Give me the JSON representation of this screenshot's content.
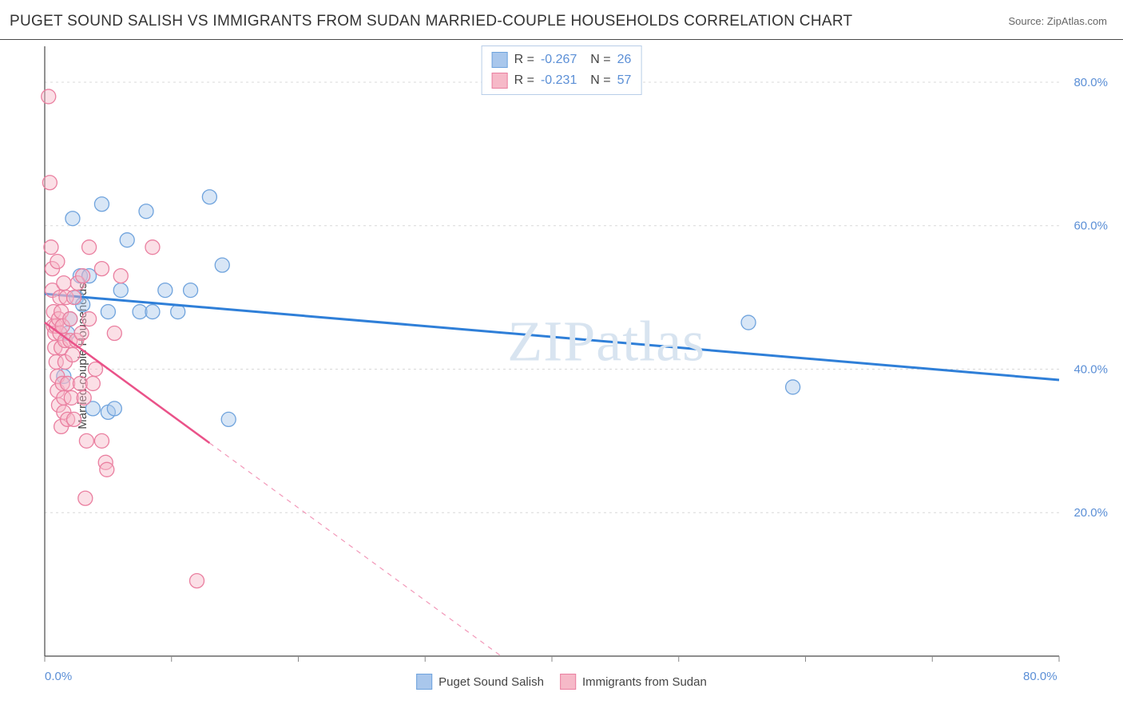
{
  "header": {
    "title": "PUGET SOUND SALISH VS IMMIGRANTS FROM SUDAN MARRIED-COUPLE HOUSEHOLDS CORRELATION CHART",
    "source_label": "Source: ZipAtlas.com"
  },
  "watermark": "ZIPatlas",
  "chart": {
    "type": "scatter",
    "background_color": "#ffffff",
    "grid_color": "#d8d8d8",
    "axis_color": "#4a4a4a",
    "tick_color": "#888",
    "tick_label_color": "#5b8fd6",
    "ylabel": "Married-couple Households",
    "ylabel_fontsize": 15,
    "xlim": [
      0,
      80
    ],
    "ylim": [
      0,
      85
    ],
    "xtick_positions": [
      0,
      10,
      20,
      30,
      40,
      50,
      60,
      70,
      80
    ],
    "xtick_labels_shown": {
      "0": "0.0%",
      "80": "80.0%"
    },
    "ytick_positions": [
      20,
      40,
      60,
      80
    ],
    "ytick_labels": [
      "20.0%",
      "40.0%",
      "60.0%",
      "80.0%"
    ],
    "series": [
      {
        "name": "Puget Sound Salish",
        "color_fill": "#a9c7ec",
        "color_stroke": "#6fa3dd",
        "marker_radius": 9,
        "fill_opacity": 0.45,
        "line_color": "#2f7fd8",
        "line_width": 3,
        "regression": {
          "x1": 0,
          "y1": 50.5,
          "x2": 80,
          "y2": 38.5,
          "solid_until_x": 80
        },
        "R": "-0.267",
        "N": "26",
        "points": [
          [
            1.5,
            39
          ],
          [
            1.8,
            45
          ],
          [
            2.0,
            47
          ],
          [
            2.2,
            61
          ],
          [
            2.5,
            50
          ],
          [
            2.8,
            53
          ],
          [
            3.5,
            53
          ],
          [
            4.5,
            63
          ],
          [
            5.0,
            48
          ],
          [
            5.0,
            34
          ],
          [
            6.0,
            51
          ],
          [
            6.5,
            58
          ],
          [
            7.5,
            48
          ],
          [
            8.0,
            62
          ],
          [
            8.5,
            48
          ],
          [
            9.5,
            51
          ],
          [
            10.5,
            48
          ],
          [
            11.5,
            51
          ],
          [
            13.0,
            64
          ],
          [
            14.0,
            54.5
          ],
          [
            14.5,
            33
          ],
          [
            3.8,
            34.5
          ],
          [
            5.5,
            34.5
          ],
          [
            55.5,
            46.5
          ],
          [
            59.0,
            37.5
          ],
          [
            3.0,
            49
          ]
        ]
      },
      {
        "name": "Immigrants from Sudan",
        "color_fill": "#f6b9c8",
        "color_stroke": "#ea7fa0",
        "marker_radius": 9,
        "fill_opacity": 0.45,
        "line_color": "#ea5289",
        "line_width": 2.5,
        "regression": {
          "x1": 0,
          "y1": 46.5,
          "x2": 36,
          "y2": 0,
          "solid_until_x": 13
        },
        "R": "-0.231",
        "N": "57",
        "points": [
          [
            0.3,
            78
          ],
          [
            0.4,
            66
          ],
          [
            0.5,
            57
          ],
          [
            0.6,
            54
          ],
          [
            0.6,
            51
          ],
          [
            0.7,
            48
          ],
          [
            0.7,
            46
          ],
          [
            0.8,
            45
          ],
          [
            0.8,
            43
          ],
          [
            0.9,
            41
          ],
          [
            0.9,
            46
          ],
          [
            1.0,
            55
          ],
          [
            1.0,
            39
          ],
          [
            1.0,
            37
          ],
          [
            1.1,
            47
          ],
          [
            1.1,
            35
          ],
          [
            1.2,
            50
          ],
          [
            1.2,
            45
          ],
          [
            1.3,
            48
          ],
          [
            1.3,
            43
          ],
          [
            1.3,
            32
          ],
          [
            1.4,
            46
          ],
          [
            1.4,
            38
          ],
          [
            1.5,
            52
          ],
          [
            1.5,
            36
          ],
          [
            1.5,
            34
          ],
          [
            1.6,
            44
          ],
          [
            1.6,
            41
          ],
          [
            1.7,
            50
          ],
          [
            1.8,
            38
          ],
          [
            1.8,
            33
          ],
          [
            2.0,
            44
          ],
          [
            2.0,
            47
          ],
          [
            2.1,
            36
          ],
          [
            2.2,
            42
          ],
          [
            2.3,
            50
          ],
          [
            2.3,
            33
          ],
          [
            2.5,
            44
          ],
          [
            2.6,
            52
          ],
          [
            2.8,
            38
          ],
          [
            2.9,
            45
          ],
          [
            3.0,
            53
          ],
          [
            3.1,
            36
          ],
          [
            3.3,
            30
          ],
          [
            3.5,
            47
          ],
          [
            3.5,
            57
          ],
          [
            3.8,
            38
          ],
          [
            4.0,
            40
          ],
          [
            4.5,
            54
          ],
          [
            4.5,
            30
          ],
          [
            4.8,
            27
          ],
          [
            4.9,
            26
          ],
          [
            5.5,
            45
          ],
          [
            6.0,
            53
          ],
          [
            8.5,
            57
          ],
          [
            12.0,
            10.5
          ],
          [
            3.2,
            22
          ]
        ]
      }
    ],
    "legend_bottom": [
      {
        "label": "Puget Sound Salish",
        "fill": "#a9c7ec",
        "stroke": "#6fa3dd"
      },
      {
        "label": "Immigrants from Sudan",
        "fill": "#f6b9c8",
        "stroke": "#ea7fa0"
      }
    ]
  }
}
